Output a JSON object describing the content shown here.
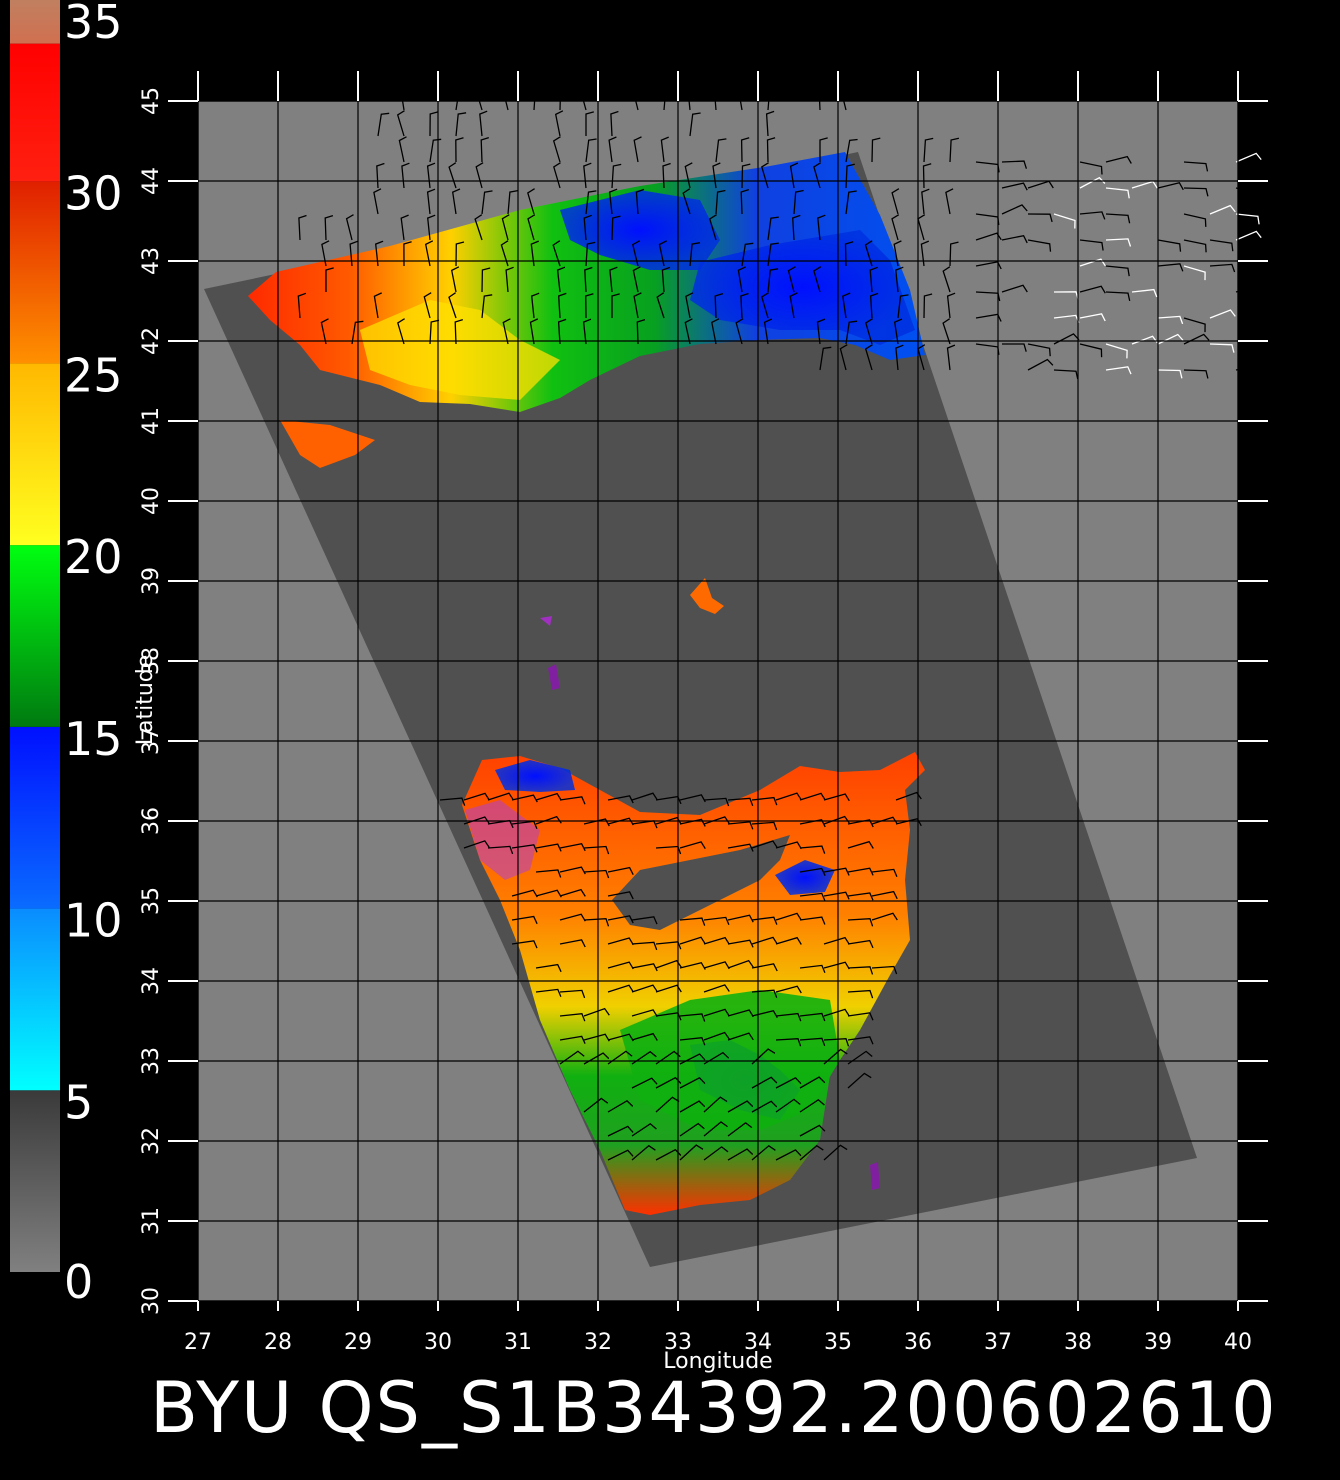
{
  "title": "BYU  QS_S1B34392.200602610",
  "map": {
    "x_axis": {
      "label": "Longitude",
      "min": 27,
      "max": 40,
      "ticks": [
        "27",
        "28",
        "29",
        "30",
        "31",
        "32",
        "33",
        "34",
        "35",
        "36",
        "37",
        "38",
        "39",
        "40"
      ]
    },
    "y_axis": {
      "label": "Latitude",
      "min": 30,
      "max": 45,
      "ticks": [
        "30",
        "31",
        "32",
        "33",
        "34",
        "35",
        "36",
        "37",
        "38",
        "39",
        "40",
        "41",
        "42",
        "43",
        "44",
        "45"
      ]
    },
    "grid": true,
    "background_color": "#808080",
    "swath_color": "#505050"
  },
  "colorbar": {
    "labels": [
      "35",
      "30",
      "25",
      "20",
      "15",
      "10",
      "5",
      "0"
    ],
    "values": [
      35,
      30,
      25,
      20,
      15,
      10,
      5,
      0
    ],
    "bands": [
      {
        "from": 0,
        "to": 5,
        "color_top": "#3a3a3a",
        "color_bottom": "#808080"
      },
      {
        "from": 5,
        "to": 10,
        "color_top": "#0a8cff",
        "color_bottom": "#00ffff"
      },
      {
        "from": 10,
        "to": 15,
        "color_top": "#0010ff",
        "color_bottom": "#0a6cff"
      },
      {
        "from": 15,
        "to": 20,
        "color_top": "#00ff10",
        "color_bottom": "#007a10"
      },
      {
        "from": 20,
        "to": 25,
        "color_top": "#ffb800",
        "color_bottom": "#ffff20"
      },
      {
        "from": 25,
        "to": 30,
        "color_top": "#e02000",
        "color_bottom": "#ff9000"
      },
      {
        "from": 30,
        "to": 33.8,
        "color_top": "#ff0000",
        "color_bottom": "#ff2010"
      },
      {
        "from": 33.8,
        "to": 35,
        "color_top": "#c08060",
        "color_bottom": "#d07050"
      }
    ]
  }
}
